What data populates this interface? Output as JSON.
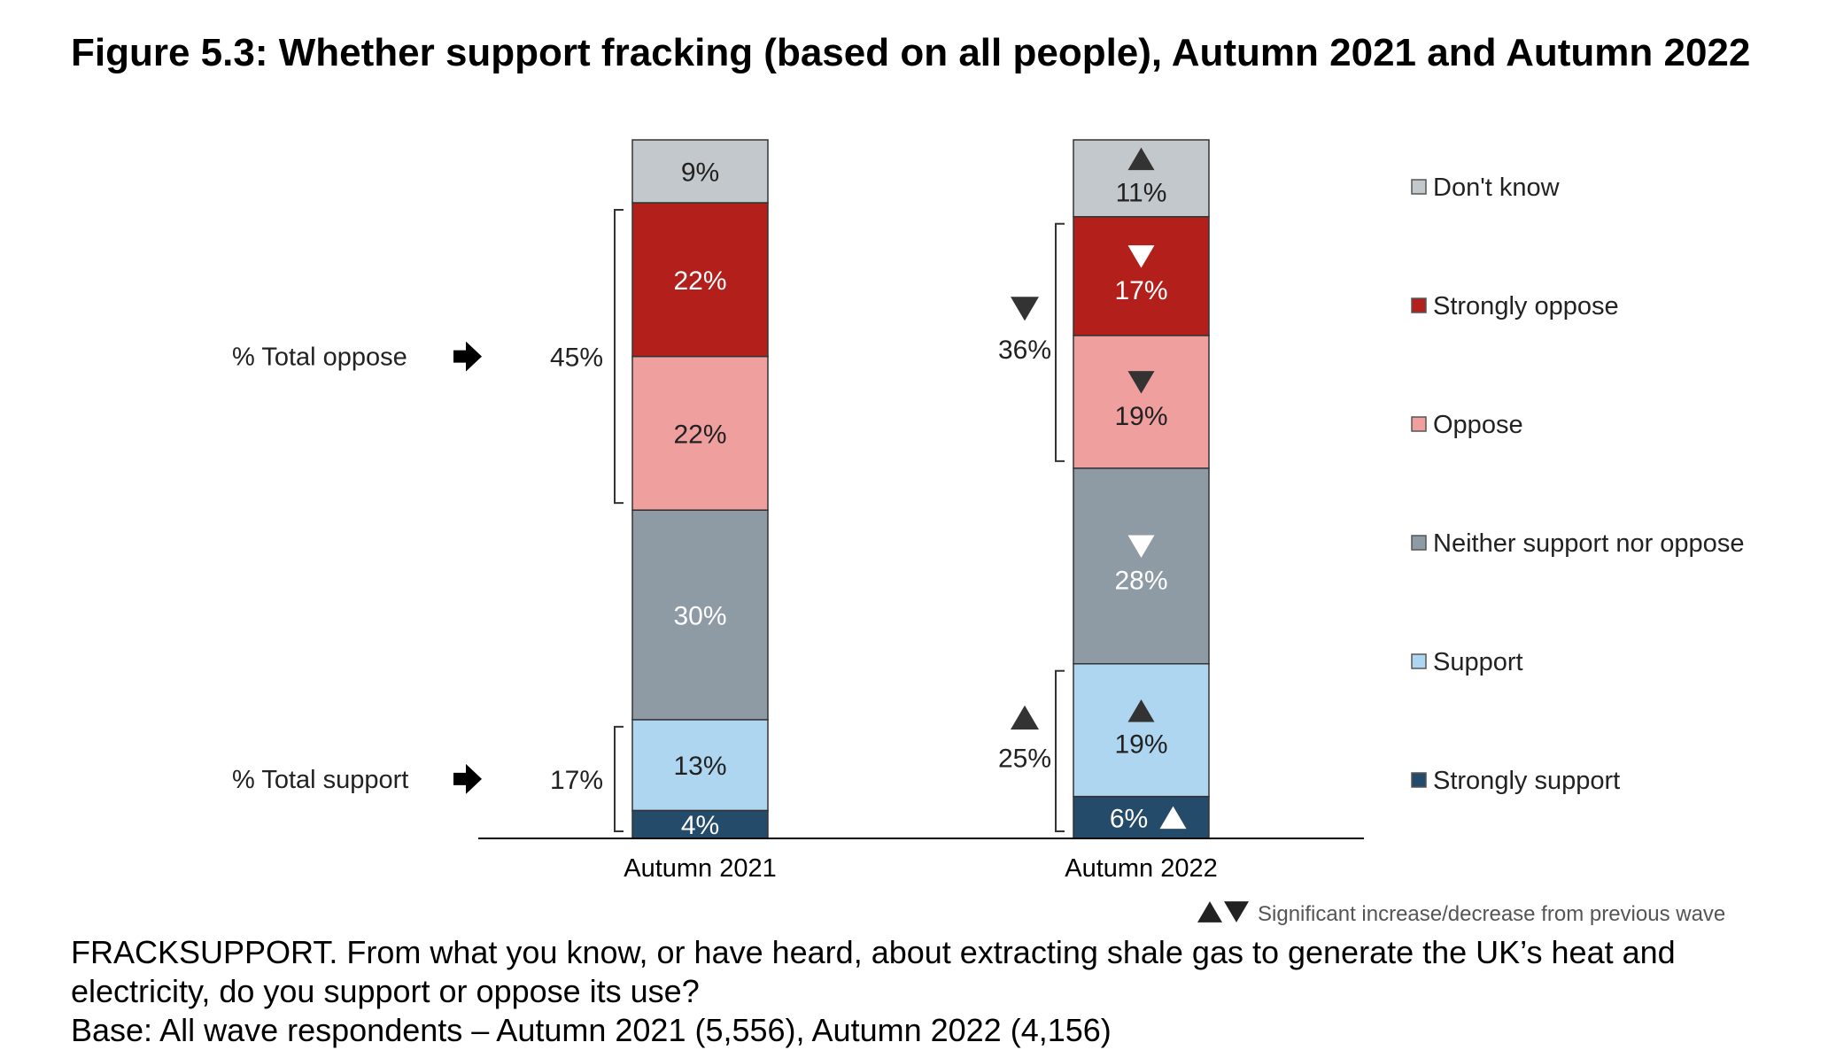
{
  "title": "Figure 5.3: Whether support fracking (based on all people), Autumn 2021 and Autumn 2022",
  "chart_data": {
    "type": "bar",
    "stacked": true,
    "categories": [
      "Autumn 2021",
      "Autumn 2022"
    ],
    "series": [
      {
        "name": "Strongly support",
        "values": [
          4,
          6
        ],
        "labels": [
          "4%",
          "6%"
        ],
        "color": "#254b6a",
        "text_color": "#ffffff",
        "significance": [
          null,
          "up"
        ]
      },
      {
        "name": "Support",
        "values": [
          13,
          19
        ],
        "labels": [
          "13%",
          "19%"
        ],
        "color": "#afd6f0",
        "text_color": "#222222",
        "significance": [
          null,
          "up"
        ]
      },
      {
        "name": "Neither support nor oppose",
        "values": [
          30,
          28
        ],
        "labels": [
          "30%",
          "28%"
        ],
        "color": "#8e9ba5",
        "text_color": "#ffffff",
        "significance": [
          null,
          "down"
        ]
      },
      {
        "name": "Oppose",
        "values": [
          22,
          19
        ],
        "labels": [
          "22%",
          "19%"
        ],
        "color": "#f09f9f",
        "text_color": "#222222",
        "significance": [
          null,
          "down"
        ]
      },
      {
        "name": "Strongly oppose",
        "values": [
          22,
          17
        ],
        "labels": [
          "22%",
          "17%"
        ],
        "color": "#b3201b",
        "text_color": "#ffffff",
        "significance": [
          null,
          "down"
        ]
      },
      {
        "name": "Don't know",
        "values": [
          9,
          11
        ],
        "labels": [
          "9%",
          "11%"
        ],
        "color": "#c3c8cc",
        "text_color": "#222222",
        "significance": [
          null,
          "up"
        ]
      }
    ],
    "legend_order": [
      "Don't know",
      "Strongly oppose",
      "Oppose",
      "Neither support nor oppose",
      "Support",
      "Strongly support"
    ],
    "legend_position": "right",
    "totals": {
      "oppose": {
        "label": "% Total oppose",
        "values": [
          45,
          36
        ],
        "value_labels": [
          "45%",
          "36%"
        ],
        "significance": [
          null,
          "down"
        ]
      },
      "support": {
        "label": "% Total support",
        "values": [
          17,
          25
        ],
        "value_labels": [
          "17%",
          "25%"
        ],
        "significance": [
          null,
          "up"
        ]
      }
    },
    "significance_note": "Significant increase/decrease from previous wave",
    "xlabel": "",
    "ylabel": "",
    "ylim": [
      0,
      100
    ],
    "grid": false
  },
  "footer": {
    "question": "FRACKSUPPORT. From what you know, or have heard, about extracting shale gas to generate the UK’s heat and electricity, do you support or oppose its use?",
    "base": "Base: All wave respondents – Autumn 2021 (5,556), Autumn 2022 (4,156)"
  }
}
